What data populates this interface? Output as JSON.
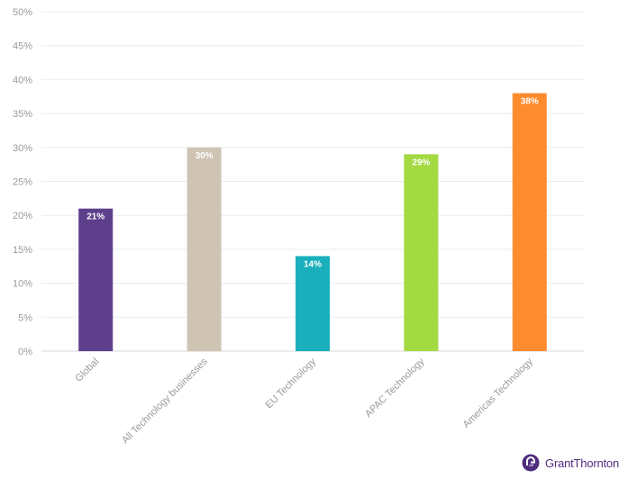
{
  "chart_data": {
    "type": "bar",
    "categories": [
      "Global",
      "All Technology businesses",
      "EU Technology",
      "APAC Technology",
      "Americas Technology"
    ],
    "values": [
      21,
      30,
      14,
      29,
      38
    ],
    "value_labels": [
      "21%",
      "30%",
      "14%",
      "29%",
      "38%"
    ],
    "colors": [
      "#5e3f8c",
      "#cfc4b4",
      "#1aafbc",
      "#a3d941",
      "#ff8b2f"
    ],
    "ylim": [
      0,
      50
    ],
    "yticks": [
      0,
      5,
      10,
      15,
      20,
      25,
      30,
      35,
      40,
      45,
      50
    ],
    "ytick_labels": [
      "0%",
      "5%",
      "10%",
      "15%",
      "20%",
      "25%",
      "30%",
      "35%",
      "40%",
      "45%",
      "50%"
    ],
    "grid": true,
    "legend": false
  },
  "brand": {
    "name": "GrantThornton",
    "logo_icon": "grant-thornton-logo-icon"
  }
}
